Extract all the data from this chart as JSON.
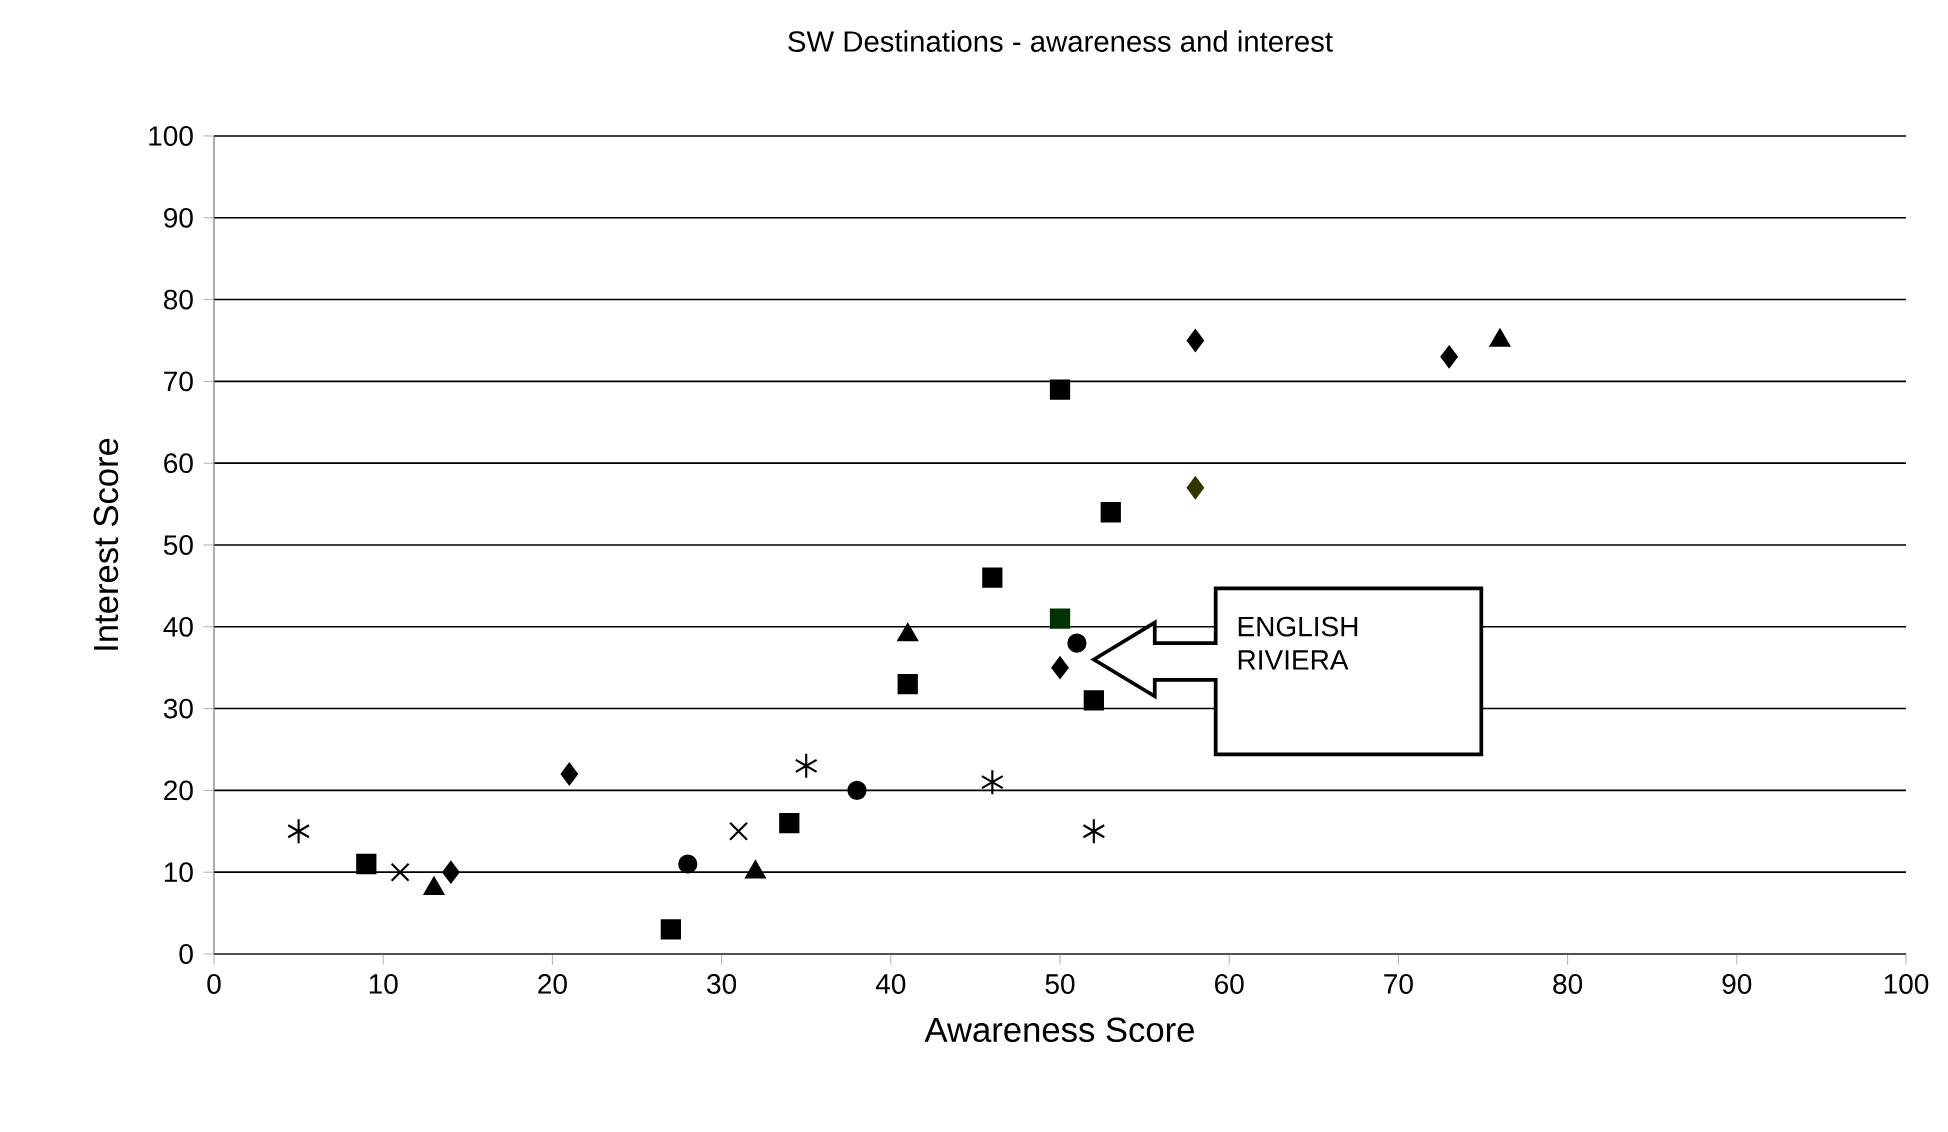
{
  "chart_data": {
    "type": "scatter",
    "title": "SW Destinations - awareness and interest",
    "xlabel": "Awareness Score",
    "ylabel": "Interest Score",
    "xlim": [
      0,
      100
    ],
    "ylim": [
      0,
      100
    ],
    "xticks": [
      0,
      10,
      20,
      30,
      40,
      50,
      60,
      70,
      80,
      90,
      100
    ],
    "yticks": [
      0,
      10,
      20,
      30,
      40,
      50,
      60,
      70,
      80,
      90,
      100
    ],
    "grid": "y",
    "series": [
      {
        "color": "#000000",
        "x": [
          5,
          35,
          46,
          52
        ],
        "values": [
          15,
          23,
          21,
          15
        ]
      },
      {
        "marker": "cross",
        "color": "#000000",
        "x": [
          11,
          31
        ],
        "values": [
          10,
          15
        ]
      },
      {
        "marker": "square",
        "color": "#000000",
        "x": [
          9,
          27,
          34,
          41,
          46,
          50,
          53,
          52
        ],
        "values": [
          11,
          3,
          16,
          33,
          46,
          69,
          54,
          31
        ]
      },
      {
        "marker": "square",
        "color": "#003300",
        "x": [
          50
        ],
        "values": [
          41
        ]
      },
      {
        "marker": "triangle",
        "color": "#000000",
        "x": [
          13,
          32,
          41,
          76
        ],
        "values": [
          8,
          10,
          39,
          75
        ]
      },
      {
        "marker": "diamond",
        "color": "#000000",
        "x": [
          14,
          21,
          50,
          58,
          73
        ],
        "values": [
          10,
          22,
          35,
          75,
          73
        ]
      },
      {
        "marker": "diamond",
        "color": "#333300",
        "x": [
          58
        ],
        "values": [
          57
        ]
      },
      {
        "marker": "circle",
        "color": "#000000",
        "x": [
          28,
          38,
          51
        ],
        "values": [
          11,
          20,
          38
        ]
      }
    ],
    "annotations": [
      "ENGLISH RIVIERA"
    ]
  }
}
